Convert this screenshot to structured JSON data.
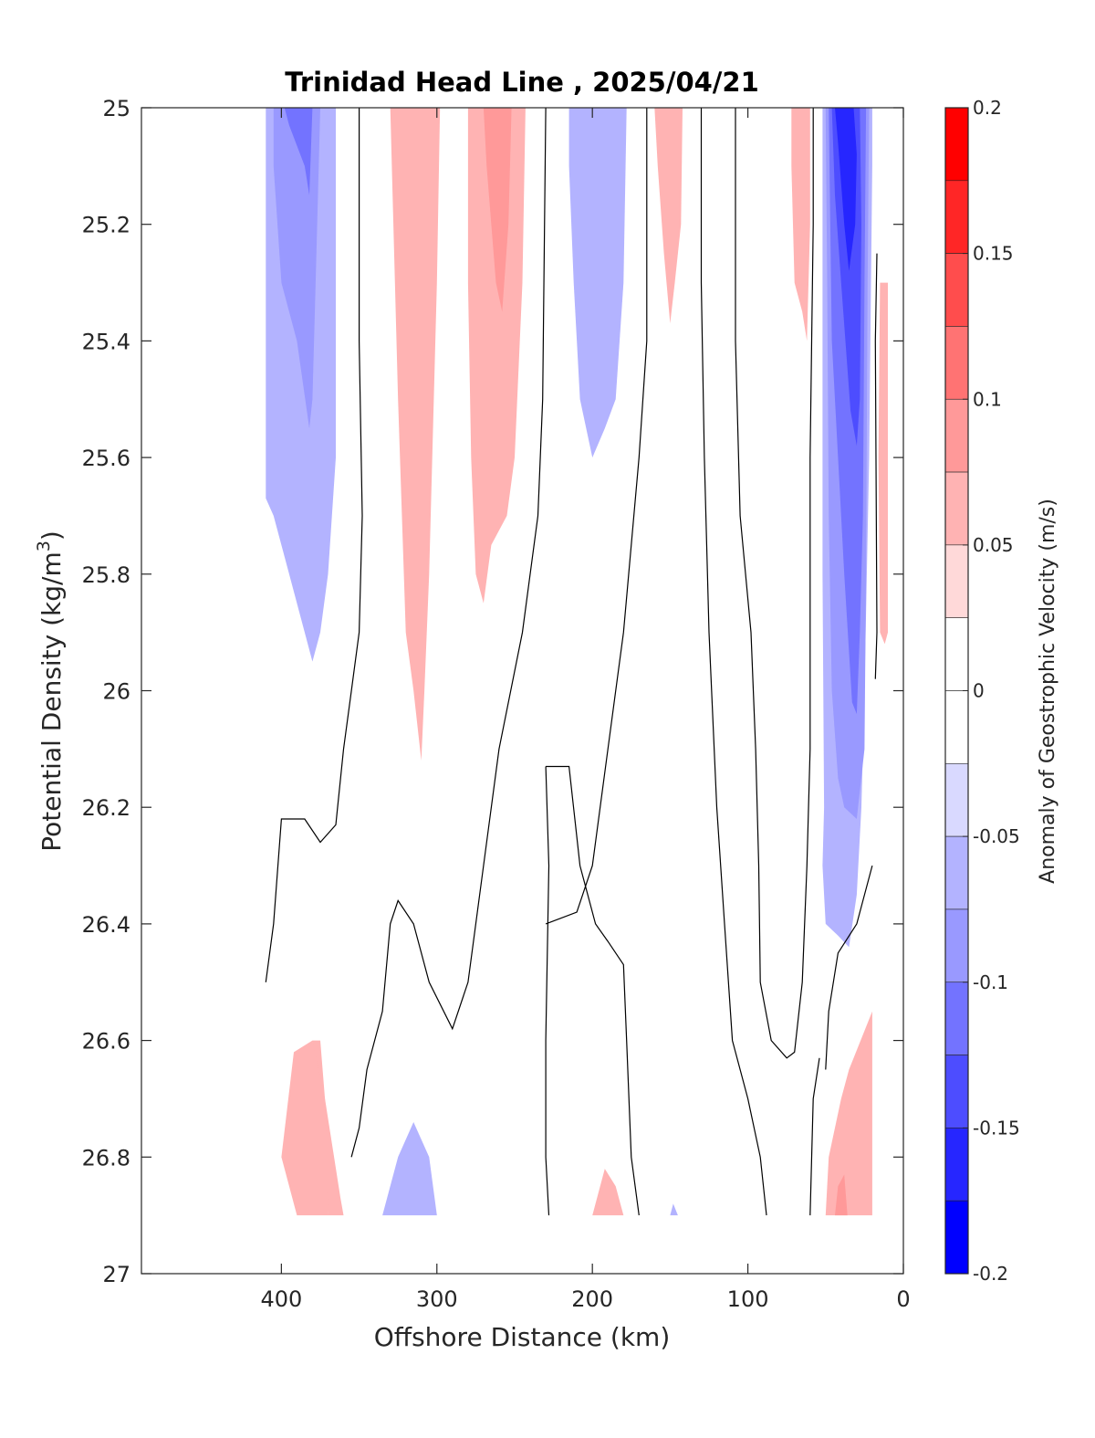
{
  "chart_data": {
    "type": "heatmap",
    "subtype": "filled contour section",
    "title": "Trinidad Head Line , 2025/04/21",
    "xlabel": "Offshore Distance (km)",
    "ylabel": "Potential Density (kg/m",
    "ylabel_sup": "3",
    "ylabel_close": ")",
    "colorbar_label": "Anomaly of Geostrophic Velocity (m/s)",
    "xlim": [
      490,
      0
    ],
    "x_reversed": true,
    "ylim": [
      25,
      27
    ],
    "y_reversed": true,
    "x_ticks": [
      400,
      300,
      200,
      100,
      0
    ],
    "y_ticks": [
      25,
      25.2,
      25.4,
      25.6,
      25.8,
      26,
      26.2,
      26.4,
      26.6,
      26.8,
      27
    ],
    "y_tick_labels": [
      "25",
      "25.2",
      "25.4",
      "25.6",
      "25.8",
      "26",
      "26.2",
      "26.4",
      "26.6",
      "26.8",
      "27"
    ],
    "colorbar": {
      "range": [
        -0.2,
        0.2
      ],
      "tick_values": [
        0.2,
        0.15,
        0.1,
        0.05,
        0,
        -0.05,
        -0.1,
        -0.15,
        -0.2
      ],
      "tick_labels": [
        "0.2",
        "0.15",
        "0.1",
        "0.05",
        "0",
        "-0.05",
        "-0.1",
        "-0.15",
        "-0.2"
      ],
      "levels": [
        {
          "from": 0.175,
          "to": 0.2,
          "color": "#ff0000"
        },
        {
          "from": 0.15,
          "to": 0.175,
          "color": "#ff2626"
        },
        {
          "from": 0.125,
          "to": 0.15,
          "color": "#ff4d4d"
        },
        {
          "from": 0.1,
          "to": 0.125,
          "color": "#ff7373"
        },
        {
          "from": 0.075,
          "to": 0.1,
          "color": "#ff9999"
        },
        {
          "from": 0.05,
          "to": 0.075,
          "color": "#ffb3b3"
        },
        {
          "from": 0.025,
          "to": 0.05,
          "color": "#ffd9d9"
        },
        {
          "from": 0,
          "to": 0.025,
          "color": "#ffffff"
        },
        {
          "from": -0.025,
          "to": 0,
          "color": "#ffffff"
        },
        {
          "from": -0.05,
          "to": -0.025,
          "color": "#d9d9ff"
        },
        {
          "from": -0.075,
          "to": -0.05,
          "color": "#b3b3ff"
        },
        {
          "from": -0.1,
          "to": -0.075,
          "color": "#9999ff"
        },
        {
          "from": -0.125,
          "to": -0.1,
          "color": "#7373ff"
        },
        {
          "from": -0.15,
          "to": -0.125,
          "color": "#4d4dff"
        },
        {
          "from": -0.175,
          "to": -0.15,
          "color": "#2626ff"
        },
        {
          "from": -0.2,
          "to": -0.175,
          "color": "#0000ff"
        }
      ]
    },
    "regions": [
      {
        "name": "neg-400-outer",
        "level": -0.05,
        "points": [
          [
            400,
            25
          ],
          [
            365,
            25
          ],
          [
            365,
            25.6
          ],
          [
            370,
            25.8
          ],
          [
            375,
            25.9
          ],
          [
            380,
            25.95
          ],
          [
            385,
            25.9
          ],
          [
            395,
            25.8
          ],
          [
            405,
            25.7
          ],
          [
            410,
            25.67
          ],
          [
            410,
            25
          ]
        ]
      },
      {
        "name": "neg-400-mid",
        "level": -0.075,
        "points": [
          [
            405,
            25
          ],
          [
            375,
            25
          ],
          [
            378,
            25.3
          ],
          [
            380,
            25.5
          ],
          [
            382,
            25.55
          ],
          [
            390,
            25.4
          ],
          [
            400,
            25.3
          ],
          [
            405,
            25.1
          ]
        ]
      },
      {
        "name": "neg-400-core",
        "level": -0.1,
        "points": [
          [
            400,
            25
          ],
          [
            380,
            25
          ],
          [
            382,
            25.15
          ],
          [
            385,
            25.1
          ],
          [
            395,
            25.03
          ],
          [
            398,
            25
          ]
        ]
      },
      {
        "name": "pos-300-outer",
        "level": 0.05,
        "points": [
          [
            330,
            25
          ],
          [
            298,
            25
          ],
          [
            300,
            25.3
          ],
          [
            303,
            25.6
          ],
          [
            305,
            25.8
          ],
          [
            308,
            26
          ],
          [
            310,
            26.12
          ],
          [
            315,
            26
          ],
          [
            320,
            25.9
          ],
          [
            325,
            25.5
          ],
          [
            328,
            25.2
          ],
          [
            330,
            25
          ]
        ]
      },
      {
        "name": "pos-260-outer",
        "level": 0.05,
        "points": [
          [
            280,
            25
          ],
          [
            243,
            25
          ],
          [
            245,
            25.3
          ],
          [
            250,
            25.6
          ],
          [
            255,
            25.7
          ],
          [
            265,
            25.75
          ],
          [
            270,
            25.85
          ],
          [
            275,
            25.8
          ],
          [
            278,
            25.6
          ],
          [
            280,
            25.3
          ]
        ]
      },
      {
        "name": "pos-260-core",
        "level": 0.075,
        "points": [
          [
            270,
            25
          ],
          [
            252,
            25
          ],
          [
            254,
            25.2
          ],
          [
            258,
            25.35
          ],
          [
            262,
            25.3
          ],
          [
            268,
            25.1
          ]
        ]
      },
      {
        "name": "neg-200-outer",
        "level": -0.05,
        "points": [
          [
            215,
            25
          ],
          [
            178,
            25
          ],
          [
            180,
            25.3
          ],
          [
            185,
            25.5
          ],
          [
            192,
            25.55
          ],
          [
            200,
            25.6
          ],
          [
            208,
            25.5
          ],
          [
            212,
            25.3
          ],
          [
            215,
            25.1
          ]
        ]
      },
      {
        "name": "pos-150",
        "level": 0.05,
        "points": [
          [
            160,
            25
          ],
          [
            142,
            25
          ],
          [
            143,
            25.2
          ],
          [
            147,
            25.3
          ],
          [
            150,
            25.37
          ],
          [
            154,
            25.25
          ],
          [
            158,
            25.1
          ]
        ]
      },
      {
        "name": "pos-65",
        "level": 0.05,
        "points": [
          [
            72,
            25
          ],
          [
            60,
            25
          ],
          [
            60,
            25.2
          ],
          [
            62,
            25.4
          ],
          [
            65,
            25.35
          ],
          [
            70,
            25.3
          ],
          [
            72,
            25.1
          ]
        ]
      },
      {
        "name": "neg-coast-outer",
        "level": -0.05,
        "points": [
          [
            52,
            25
          ],
          [
            20,
            25
          ],
          [
            20,
            25.1
          ],
          [
            22,
            25.6
          ],
          [
            25,
            26
          ],
          [
            27,
            26.2
          ],
          [
            30,
            26.35
          ],
          [
            35,
            26.44
          ],
          [
            42,
            26.42
          ],
          [
            50,
            26.4
          ],
          [
            52,
            26.3
          ],
          [
            51,
            26.2
          ],
          [
            52,
            25.8
          ],
          [
            52,
            25.4
          ]
        ]
      },
      {
        "name": "neg-coast-l2",
        "level": -0.075,
        "points": [
          [
            50,
            25
          ],
          [
            22,
            25
          ],
          [
            23,
            25.3
          ],
          [
            24,
            25.8
          ],
          [
            25,
            26.1
          ],
          [
            30,
            26.22
          ],
          [
            38,
            26.2
          ],
          [
            42,
            26.15
          ],
          [
            46,
            26
          ],
          [
            48,
            25.7
          ],
          [
            49,
            25.3
          ]
        ]
      },
      {
        "name": "neg-coast-l3",
        "level": -0.1,
        "points": [
          [
            48,
            25
          ],
          [
            24,
            25
          ],
          [
            25,
            25.3
          ],
          [
            26,
            25.7
          ],
          [
            28,
            25.9
          ],
          [
            30,
            26.04
          ],
          [
            33,
            26.02
          ],
          [
            38,
            25.8
          ],
          [
            42,
            25.6
          ],
          [
            46,
            25.4
          ],
          [
            47,
            25.2
          ]
        ]
      },
      {
        "name": "neg-coast-l4",
        "level": -0.125,
        "points": [
          [
            46,
            25
          ],
          [
            28,
            25
          ],
          [
            27,
            25.2
          ],
          [
            28,
            25.5
          ],
          [
            30,
            25.58
          ],
          [
            34,
            25.52
          ],
          [
            40,
            25.3
          ],
          [
            44,
            25.15
          ]
        ]
      },
      {
        "name": "neg-coast-l5",
        "level": -0.15,
        "points": [
          [
            44,
            25
          ],
          [
            32,
            25
          ],
          [
            30,
            25.08
          ],
          [
            31,
            25.2
          ],
          [
            35,
            25.28
          ],
          [
            38,
            25.2
          ],
          [
            42,
            25.06
          ]
        ]
      },
      {
        "name": "pos-coast-strip",
        "level": 0.05,
        "points": [
          [
            15,
            25.3
          ],
          [
            10,
            25.3
          ],
          [
            10,
            25.9
          ],
          [
            12,
            25.92
          ],
          [
            15,
            25.9
          ],
          [
            16,
            25.6
          ]
        ]
      },
      {
        "name": "pos-380-deep",
        "level": 0.05,
        "points": [
          [
            380,
            26.6
          ],
          [
            370,
            26.9
          ],
          [
            360,
            26.9
          ],
          [
            362,
            26.87
          ],
          [
            372,
            26.7
          ],
          [
            375,
            26.6
          ]
        ]
      },
      {
        "name": "pos-380-deep-b",
        "level": 0.05,
        "points": [
          [
            392,
            26.62
          ],
          [
            400,
            26.8
          ],
          [
            390,
            26.9
          ],
          [
            370,
            26.9
          ],
          [
            372,
            26.7
          ],
          [
            380,
            26.6
          ]
        ]
      },
      {
        "name": "neg-310-deep",
        "level": -0.05,
        "points": [
          [
            335,
            26.9
          ],
          [
            325,
            26.8
          ],
          [
            315,
            26.74
          ],
          [
            305,
            26.8
          ],
          [
            300,
            26.9
          ]
        ]
      },
      {
        "name": "pos-185-deep",
        "level": 0.05,
        "points": [
          [
            200,
            26.9
          ],
          [
            192,
            26.82
          ],
          [
            185,
            26.85
          ],
          [
            180,
            26.9
          ]
        ]
      },
      {
        "name": "neg-150-deep",
        "level": -0.05,
        "points": [
          [
            150,
            26.9
          ],
          [
            148,
            26.88
          ],
          [
            145,
            26.9
          ]
        ]
      },
      {
        "name": "pos-coast-deep",
        "level": 0.05,
        "points": [
          [
            50,
            26.9
          ],
          [
            48,
            26.8
          ],
          [
            40,
            26.7
          ],
          [
            35,
            26.65
          ],
          [
            20,
            26.55
          ],
          [
            20,
            26.9
          ],
          [
            30,
            26.9
          ]
        ]
      },
      {
        "name": "pos-coast-deep-core",
        "level": 0.075,
        "points": [
          [
            44,
            26.9
          ],
          [
            42,
            26.85
          ],
          [
            38,
            26.83
          ],
          [
            36,
            26.9
          ]
        ]
      }
    ],
    "zero_contours": [
      [
        [
          350,
          25
        ],
        [
          350,
          25.4
        ],
        [
          348,
          25.7
        ],
        [
          350,
          25.9
        ],
        [
          355,
          26
        ],
        [
          360,
          26.1
        ],
        [
          365,
          26.23
        ],
        [
          375,
          26.26
        ],
        [
          385,
          26.22
        ],
        [
          400,
          26.22
        ],
        [
          405,
          26.4
        ],
        [
          410,
          26.5
        ]
      ],
      [
        [
          230,
          25
        ],
        [
          232,
          25.5
        ],
        [
          235,
          25.7
        ],
        [
          245,
          25.9
        ],
        [
          260,
          26.1
        ],
        [
          270,
          26.3
        ],
        [
          280,
          26.5
        ],
        [
          290,
          26.58
        ],
        [
          305,
          26.5
        ],
        [
          315,
          26.4
        ],
        [
          325,
          26.36
        ],
        [
          330,
          26.4
        ],
        [
          335,
          26.55
        ],
        [
          345,
          26.65
        ],
        [
          350,
          26.75
        ],
        [
          355,
          26.8
        ]
      ],
      [
        [
          165,
          25
        ],
        [
          165,
          25.4
        ],
        [
          170,
          25.6
        ],
        [
          180,
          25.9
        ],
        [
          190,
          26.1
        ],
        [
          200,
          26.3
        ],
        [
          210,
          26.38
        ],
        [
          230,
          26.4
        ]
      ],
      [
        [
          230,
          26.13
        ],
        [
          215,
          26.13
        ],
        [
          208,
          26.3
        ],
        [
          198,
          26.4
        ],
        [
          190,
          26.43
        ],
        [
          180,
          26.47
        ],
        [
          178,
          26.6
        ],
        [
          175,
          26.8
        ],
        [
          170,
          26.9
        ]
      ],
      [
        [
          228,
          26.9
        ],
        [
          230,
          26.8
        ],
        [
          230,
          26.6
        ],
        [
          228,
          26.3
        ],
        [
          230,
          26.13
        ]
      ],
      [
        [
          130,
          25
        ],
        [
          130,
          25.3
        ],
        [
          128,
          25.6
        ],
        [
          125,
          25.9
        ],
        [
          120,
          26.2
        ],
        [
          115,
          26.4
        ],
        [
          110,
          26.6
        ],
        [
          100,
          26.7
        ],
        [
          92,
          26.8
        ],
        [
          88,
          26.9
        ]
      ],
      [
        [
          108,
          25
        ],
        [
          108,
          25.4
        ],
        [
          105,
          25.7
        ],
        [
          98,
          25.9
        ],
        [
          95,
          26.1
        ],
        [
          93,
          26.3
        ],
        [
          92,
          26.5
        ],
        [
          85,
          26.6
        ],
        [
          75,
          26.63
        ],
        [
          70,
          26.62
        ],
        [
          65,
          26.5
        ],
        [
          62,
          26.3
        ],
        [
          60,
          26.1
        ],
        [
          60,
          25.6
        ],
        [
          58,
          25.2
        ],
        [
          58,
          25
        ]
      ],
      [
        [
          50,
          26.65
        ],
        [
          48,
          26.55
        ],
        [
          42,
          26.45
        ],
        [
          30,
          26.4
        ],
        [
          25,
          26.35
        ],
        [
          20,
          26.3
        ]
      ],
      [
        [
          60,
          26.9
        ],
        [
          58,
          26.7
        ],
        [
          54,
          26.63
        ]
      ],
      [
        [
          17,
          25.25
        ],
        [
          18,
          25.4
        ],
        [
          17,
          25.9
        ],
        [
          18,
          25.98
        ]
      ]
    ]
  }
}
